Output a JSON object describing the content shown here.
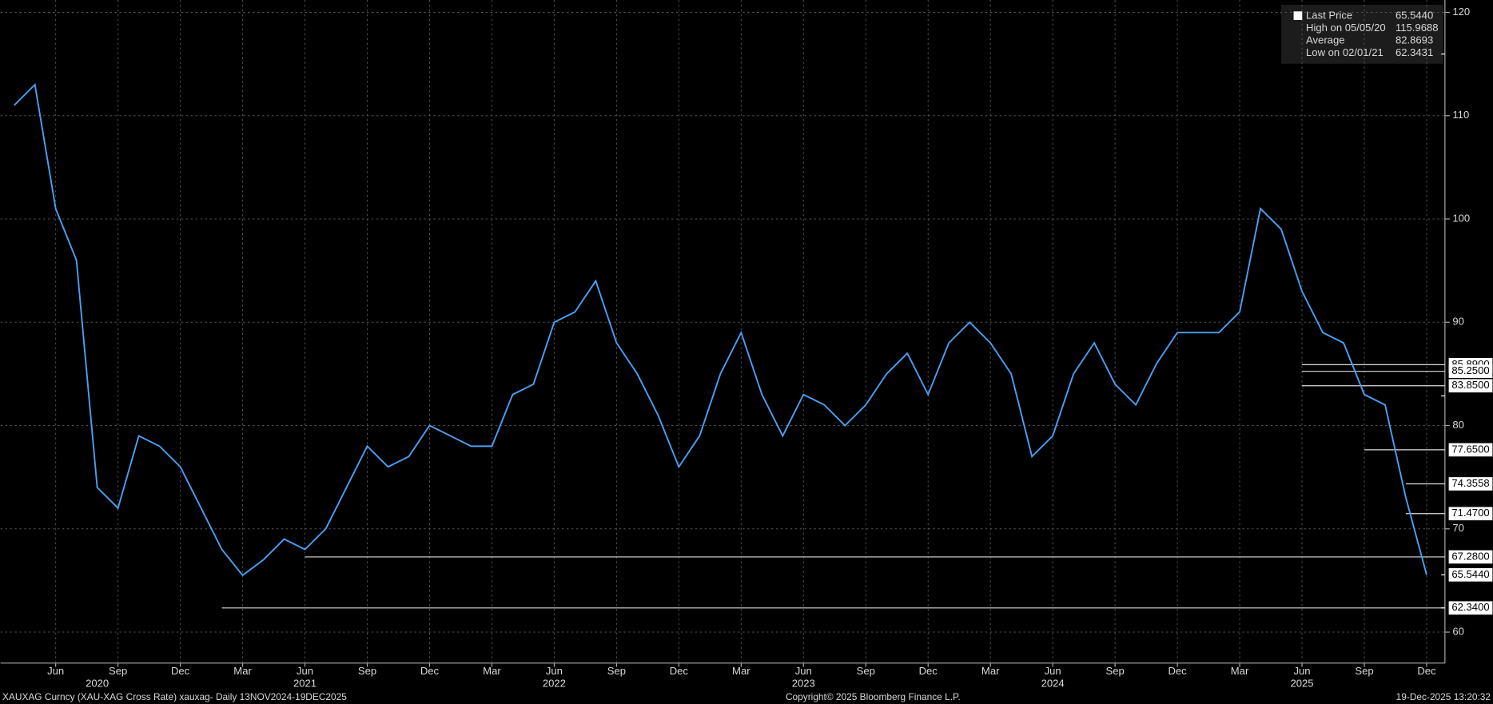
{
  "chart_data": {
    "type": "line",
    "x": [
      "2020-04",
      "2020-05",
      "2020-06",
      "2020-07",
      "2020-08",
      "2020-09",
      "2020-10",
      "2020-11",
      "2020-12",
      "2021-01",
      "2021-02",
      "2021-03",
      "2021-04",
      "2021-05",
      "2021-06",
      "2021-07",
      "2021-08",
      "2021-09",
      "2021-10",
      "2021-11",
      "2021-12",
      "2022-01",
      "2022-02",
      "2022-03",
      "2022-04",
      "2022-05",
      "2022-06",
      "2022-07",
      "2022-08",
      "2022-09",
      "2022-10",
      "2022-11",
      "2022-12",
      "2023-01",
      "2023-02",
      "2023-03",
      "2023-04",
      "2023-05",
      "2023-06",
      "2023-07",
      "2023-08",
      "2023-09",
      "2023-10",
      "2023-11",
      "2023-12",
      "2024-01",
      "2024-02",
      "2024-03",
      "2024-04",
      "2024-05",
      "2024-06",
      "2024-07",
      "2024-08",
      "2024-09",
      "2024-10",
      "2024-11",
      "2024-12",
      "2025-01",
      "2025-02",
      "2025-03",
      "2025-04",
      "2025-05",
      "2025-06",
      "2025-07",
      "2025-08",
      "2025-09",
      "2025-10",
      "2025-11",
      "2025-12"
    ],
    "series": [
      {
        "name": "Last Price",
        "color": "#4a9ff5",
        "values": [
          111,
          113,
          101,
          96,
          74,
          72,
          79,
          78,
          76,
          72,
          68,
          65.5,
          67,
          69,
          68,
          70,
          74,
          78,
          76,
          77,
          80,
          79,
          78,
          78,
          83,
          84,
          90,
          91,
          94,
          88,
          85,
          81,
          76,
          79,
          85,
          89,
          83,
          79,
          83,
          82,
          80,
          82,
          85,
          87,
          83,
          88,
          90,
          88,
          85,
          77,
          79,
          85,
          88,
          84,
          82,
          86,
          89,
          89,
          89,
          91,
          101,
          99,
          93,
          89,
          88,
          83,
          82,
          73,
          65.544
        ]
      }
    ],
    "ylim": [
      57,
      121.2
    ],
    "yticks": [
      60,
      70,
      80,
      90,
      100,
      110,
      120
    ],
    "grid": true,
    "xticks": [
      {
        "value": "2020-06",
        "label": "Jun"
      },
      {
        "value": "2020-09",
        "label": "Sep"
      },
      {
        "value": "2020-12",
        "label": "Dec"
      },
      {
        "value": "2021-03",
        "label": "Mar"
      },
      {
        "value": "2021-06",
        "label": "Jun"
      },
      {
        "value": "2021-09",
        "label": "Sep"
      },
      {
        "value": "2021-12",
        "label": "Dec"
      },
      {
        "value": "2022-03",
        "label": "Mar"
      },
      {
        "value": "2022-06",
        "label": "Jun"
      },
      {
        "value": "2022-09",
        "label": "Sep"
      },
      {
        "value": "2022-12",
        "label": "Dec"
      },
      {
        "value": "2023-03",
        "label": "Mar"
      },
      {
        "value": "2023-06",
        "label": "Jun"
      },
      {
        "value": "2023-09",
        "label": "Sep"
      },
      {
        "value": "2023-12",
        "label": "Dec"
      },
      {
        "value": "2024-03",
        "label": "Mar"
      },
      {
        "value": "2024-06",
        "label": "Jun"
      },
      {
        "value": "2024-09",
        "label": "Sep"
      },
      {
        "value": "2024-12",
        "label": "Dec"
      },
      {
        "value": "2025-03",
        "label": "Mar"
      },
      {
        "value": "2025-06",
        "label": "Jun"
      },
      {
        "value": "2025-09",
        "label": "Sep"
      },
      {
        "value": "2025-12",
        "label": "Dec"
      }
    ],
    "year_labels": [
      {
        "value": "2020-08",
        "label": "2020"
      },
      {
        "value": "2021-06",
        "label": "2021"
      },
      {
        "value": "2022-06",
        "label": "2022"
      },
      {
        "value": "2023-06",
        "label": "2023"
      },
      {
        "value": "2024-06",
        "label": "2024"
      },
      {
        "value": "2025-06",
        "label": "2025"
      }
    ],
    "stats": [
      {
        "name": "Last Price",
        "value": 65.544,
        "label": "65.5440"
      },
      {
        "name": "High on 05/05/20",
        "value": 115.9688,
        "label": "115.9688"
      },
      {
        "name": "Average",
        "value": 82.8693,
        "label": "82.8693"
      },
      {
        "name": "Low on 02/01/21",
        "value": 62.3431,
        "label": "62.3431"
      }
    ],
    "levels": [
      {
        "value": 85.89,
        "label": "85.8900",
        "from": "2025-06"
      },
      {
        "value": 85.25,
        "label": "85.2500",
        "from": "2025-06"
      },
      {
        "value": 83.85,
        "label": "83.8500",
        "from": "2025-06"
      },
      {
        "value": 77.65,
        "label": "77.6500",
        "from": "2025-09"
      },
      {
        "value": 74.3558,
        "label": "74.3558",
        "from": "2025-11"
      },
      {
        "value": 71.47,
        "label": "71.4700",
        "from": "2025-11"
      },
      {
        "value": 67.28,
        "label": "67.2800",
        "from": "2021-06"
      },
      {
        "value": 62.34,
        "label": "62.3400",
        "from": "2021-02"
      }
    ],
    "footer": {
      "left": "XAUXAG Curncy (XAU-XAG Cross Rate) xauxag- Daily 13NOV2024-19DEC2025",
      "center": "Copyright© 2025 Bloomberg Finance L.P.",
      "right": "19-Dec-2025 13:20:32"
    }
  }
}
